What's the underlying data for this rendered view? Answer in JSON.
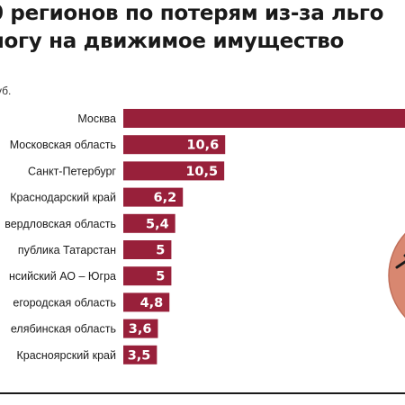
{
  "header": {
    "title_line1": "0 регионов по потерям из-за льго",
    "title_line2": "логу на движимое имущество",
    "unit": "уб."
  },
  "colors": {
    "bar": "#98203a",
    "circle": "#d88770",
    "circle_stroke": "#c06f5a",
    "text": "#1a1a1a"
  },
  "chart_data": {
    "type": "bar",
    "orientation": "horizontal",
    "title": "0 регионов по потерям из-за льго логу на движимое имущество",
    "unit": "уб.",
    "categories": [
      "Москва",
      "Московская область",
      "Санкт-Петербург",
      "Краснодарский край",
      "вердловская область",
      "публика Татарстан",
      "нсийский АО – Югра",
      "егородская область",
      "елябинская область",
      "Красноярский край"
    ],
    "values": [
      null,
      10.6,
      10.5,
      6.2,
      5.4,
      5,
      5,
      4.8,
      3.6,
      3.5
    ],
    "labels": [
      "",
      "10,6",
      "10,5",
      "6,2",
      "5,4",
      "5",
      "5",
      "4,8",
      "3,6",
      "3,5"
    ],
    "grid": false,
    "legend": "none"
  }
}
